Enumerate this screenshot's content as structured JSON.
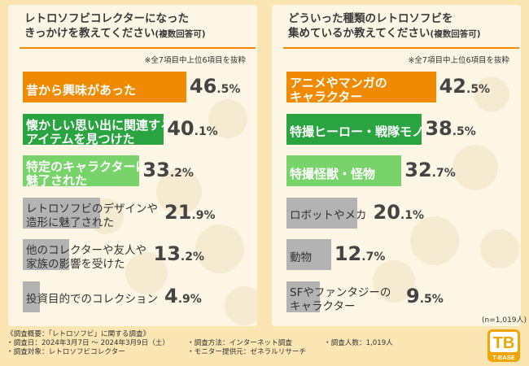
{
  "left": {
    "title_line1": "レトロソフビコレクターになった",
    "title_line2": "きっかけを教えてください",
    "title_suffix": "(複数回答可)",
    "note": "※全7項目中上位6項目を抜粋"
  },
  "right": {
    "title_line1": "どういった種類のレトロソフビを",
    "title_line2": "集めているか教えてください",
    "title_suffix": "(複数回答可)",
    "note": "※全7項目中上位6項目を抜粋"
  },
  "chart_data": [
    {
      "type": "bar",
      "orientation": "horizontal",
      "title": "レトロソフビコレクターになったきっかけを教えてください(複数回答可)",
      "unit": "%",
      "categories": [
        "昔から興味があった",
        "懐かしい思い出に関連する\nアイテムを見つけた",
        "特定のキャラクターに\n魅了された",
        "レトロソフビのデザインや\n造形に魅了された",
        "他のコレクターや友人や\n家族の影響を受けた",
        "投資目的でのコレクション"
      ],
      "values": [
        46.5,
        40.1,
        33.2,
        21.9,
        13.2,
        4.9
      ],
      "value_int": [
        "46",
        "40",
        "33",
        "21",
        "13",
        "4"
      ],
      "value_dec": [
        ".5",
        ".1",
        ".2",
        ".9",
        ".2",
        ".9"
      ],
      "colors": [
        "#f08a00",
        "#2aa341",
        "#79d36b",
        "#b3b3b3",
        "#b3b3b3",
        "#b3b3b3"
      ]
    },
    {
      "type": "bar",
      "orientation": "horizontal",
      "title": "どういった種類のレトロソフビを集めているか教えてください(複数回答可)",
      "unit": "%",
      "categories": [
        "アニメやマンガの\nキャラクター",
        "特撮ヒーロー・戦隊モノ",
        "特撮怪獣・怪物",
        "ロボットやメカ",
        "動物",
        "SFやファンタジーの\nキャラクター"
      ],
      "values": [
        42.5,
        38.5,
        32.7,
        20.1,
        12.7,
        9.5
      ],
      "value_int": [
        "42",
        "38",
        "32",
        "20",
        "12",
        "9"
      ],
      "value_dec": [
        ".5",
        ".5",
        ".7",
        ".1",
        ".7",
        ".5"
      ],
      "colors": [
        "#f08a00",
        "#2aa341",
        "#79d36b",
        "#b3b3b3",
        "#b3b3b3",
        "#b3b3b3"
      ]
    }
  ],
  "n_note": "(n=1,019人)",
  "footer": {
    "overview": "《調査概要：「レトロソフビ」に関する調査》",
    "period": "・調査日：2024年3月7日 〜 2024年3月9日（土）",
    "target": "・調査対象：レトロソフビコレクター",
    "method": "・調査方法：インターネット調査",
    "provider": "・モニター提供元：ゼネラルリサーチ",
    "count": "・調査人数：1,019人"
  },
  "logo": {
    "mark": "TB",
    "text": "T-BASE",
    "color": "#f0a500"
  }
}
